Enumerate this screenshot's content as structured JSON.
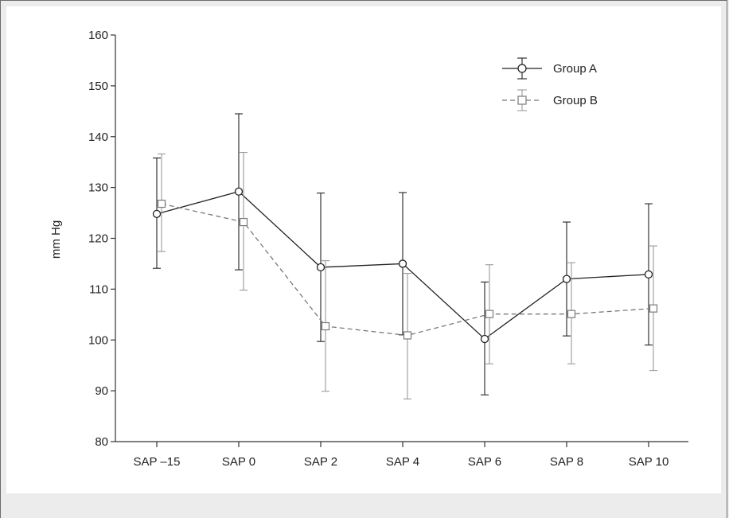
{
  "chart_data": {
    "type": "line",
    "ylabel": "mm Hg",
    "xlabel": "",
    "ylim": [
      80,
      160
    ],
    "yticks": [
      80,
      90,
      100,
      110,
      120,
      130,
      140,
      150,
      160
    ],
    "categories": [
      "SAP –15",
      "SAP 0",
      "SAP 2",
      "SAP 4",
      "SAP 6",
      "SAP 8",
      "SAP 10"
    ],
    "legend_position": "top-right",
    "grid": false,
    "series": [
      {
        "name": "Group A",
        "marker": "circle",
        "line_style": "solid",
        "color": "#222222",
        "values": [
          124.8,
          129.2,
          114.3,
          115.0,
          100.2,
          112.0,
          112.9
        ],
        "error_low": [
          114.1,
          113.8,
          99.7,
          101.0,
          89.2,
          100.8,
          99.0
        ],
        "error_high": [
          135.8,
          144.5,
          128.9,
          129.0,
          111.4,
          123.2,
          126.8
        ]
      },
      {
        "name": "Group B",
        "marker": "square",
        "line_style": "dashed",
        "color": "#7a7a7a",
        "values": [
          126.8,
          123.2,
          102.7,
          100.9,
          105.1,
          105.1,
          106.2
        ],
        "error_low": [
          117.4,
          109.8,
          89.9,
          88.4,
          95.3,
          95.3,
          94.0
        ],
        "error_high": [
          136.6,
          136.9,
          115.6,
          113.1,
          114.8,
          115.2,
          118.5
        ]
      }
    ]
  }
}
